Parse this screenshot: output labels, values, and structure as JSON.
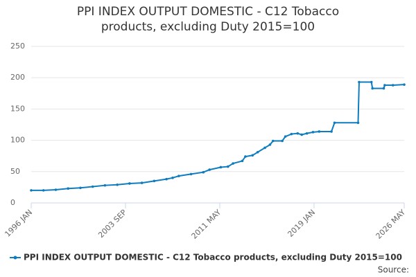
{
  "chart_data": {
    "type": "line",
    "title": "PPI INDEX OUTPUT DOMESTIC - C12 Tobacco products, excluding Duty 2015=100",
    "source": "Source:",
    "x": [
      "1996-01",
      "1997-01",
      "1998-01",
      "1999-01",
      "2000-01",
      "2001-01",
      "2002-01",
      "2003-01",
      "2004-01",
      "2005-01",
      "2006-01",
      "2007-01",
      "2007-07",
      "2008-01",
      "2009-01",
      "2010-01",
      "2010-07",
      "2011-06",
      "2012-01",
      "2012-06",
      "2013-03",
      "2013-06",
      "2014-01",
      "2014-06",
      "2015-01",
      "2015-06",
      "2015-09",
      "2016-06",
      "2016-09",
      "2017-03",
      "2017-09",
      "2018-01",
      "2018-06",
      "2018-12",
      "2019-06",
      "2020-06",
      "2020-09",
      "2022-08",
      "2022-09",
      "2023-09",
      "2023-10",
      "2024-09",
      "2024-10",
      "2025-06",
      "2026-05"
    ],
    "series": [
      {
        "name": "PPI INDEX OUTPUT DOMESTIC - C12 Tobacco products, excluding Duty 2015=100",
        "color": "#0f7cbf",
        "values": [
          20,
          20,
          21,
          23,
          24,
          26,
          28,
          29,
          31,
          32,
          35,
          38,
          40,
          43,
          46,
          49,
          53,
          57,
          58,
          63,
          67,
          74,
          76,
          81,
          88,
          93,
          99,
          99,
          106,
          110,
          111,
          109,
          111,
          113,
          114,
          114,
          128,
          128,
          193,
          193,
          183,
          183,
          188,
          188,
          189
        ]
      }
    ],
    "xlim": [
      "1996-01",
      "2026-05"
    ],
    "xticks": [
      {
        "value": "1996-01",
        "label": "1996 JAN"
      },
      {
        "value": "2003-09",
        "label": "2003 SEP"
      },
      {
        "value": "2011-05",
        "label": "2011 MAY"
      },
      {
        "value": "2019-01",
        "label": "2019 JAN"
      },
      {
        "value": "2026-05",
        "label": "2026 MAY"
      }
    ],
    "ylim": [
      0,
      250
    ],
    "yticks": [
      0,
      50,
      100,
      150,
      200,
      250
    ],
    "grid": true
  }
}
